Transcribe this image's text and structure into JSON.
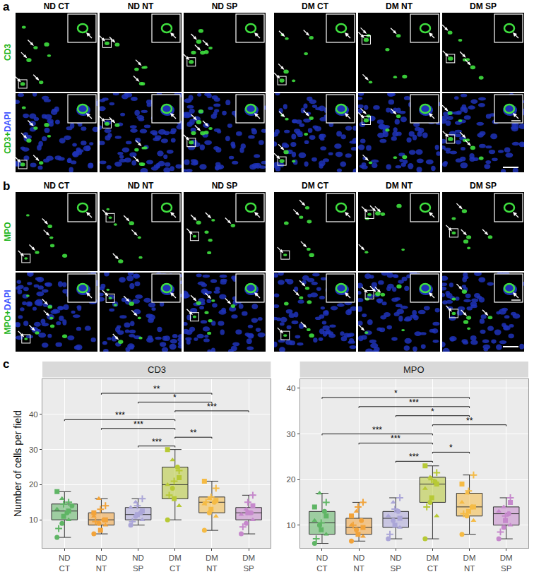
{
  "figure": {
    "panels": [
      {
        "letter": "a",
        "columns": [
          "ND CT",
          "ND NT",
          "ND SP",
          "DM CT",
          "DM NT",
          "DM SP"
        ],
        "rows": [
          "CD3",
          "CD3+DAPI"
        ]
      },
      {
        "letter": "b",
        "columns": [
          "ND CT",
          "ND NT",
          "ND SP",
          "DM CT",
          "DM NT",
          "DM SP"
        ],
        "rows": [
          "MPO",
          "MPO+DAPI"
        ]
      }
    ]
  },
  "chart_data": {
    "letter": "c",
    "type": "box",
    "y_label": "Number of cells per field",
    "grid": true,
    "categories": [
      "ND CT",
      "ND NT",
      "ND SP",
      "DM CT",
      "DM NT",
      "DM SP"
    ],
    "colors": [
      "#5fb565",
      "#f2a33a",
      "#aba6d8",
      "#b7c935",
      "#f5bb45",
      "#c688cc"
    ],
    "facets": [
      {
        "title": "CD3",
        "ylim": [
          2,
          50
        ],
        "yticks": [
          10,
          20,
          30,
          40
        ],
        "boxes": [
          {
            "q1": 10,
            "median": 12.5,
            "q3": 14.5,
            "lowerfence": 5,
            "upperfence": 18,
            "points": [
              {
                "marker": "circle",
                "values": [
                  5,
                  9,
                  12,
                  14
                ]
              },
              {
                "marker": "triangle",
                "values": [
                  10,
                  13,
                  16
                ]
              },
              {
                "marker": "square",
                "values": [
                  11,
                  12.5,
                  18
                ]
              },
              {
                "marker": "plus",
                "values": [
                  7.5,
                  14.5,
                  15
                ]
              }
            ]
          },
          {
            "q1": 8.5,
            "median": 10,
            "q3": 12,
            "lowerfence": 6,
            "upperfence": 16,
            "points": [
              {
                "marker": "circle",
                "values": [
                  6,
                  9,
                  10
                ]
              },
              {
                "marker": "triangle",
                "values": [
                  8.5,
                  11,
                  16
                ]
              },
              {
                "marker": "square",
                "values": [
                  7,
                  10,
                  12
                ]
              },
              {
                "marker": "plus",
                "values": [
                  9.5,
                  13,
                  14
                ]
              }
            ]
          },
          {
            "q1": 10,
            "median": 11.5,
            "q3": 13.5,
            "lowerfence": 8.5,
            "upperfence": 16,
            "points": [
              {
                "marker": "circle",
                "values": [
                  8.5,
                  11,
                  12
                ]
              },
              {
                "marker": "triangle",
                "values": [
                  10,
                  13.5,
                  15
                ]
              },
              {
                "marker": "square",
                "values": [
                  11.5,
                  12.5
                ]
              },
              {
                "marker": "plus",
                "values": [
                  9.5,
                  14,
                  16
                ]
              }
            ]
          },
          {
            "q1": 16,
            "median": 20,
            "q3": 25,
            "lowerfence": 10,
            "upperfence": 30,
            "points": [
              {
                "marker": "circle",
                "values": [
                  10,
                  19,
                  25
                ]
              },
              {
                "marker": "triangle",
                "values": [
                  14,
                  20,
                  27
                ]
              },
              {
                "marker": "square",
                "values": [
                  16,
                  22,
                  30
                ]
              },
              {
                "marker": "plus",
                "values": [
                  17,
                  21,
                  24
                ]
              }
            ]
          },
          {
            "q1": 12,
            "median": 15,
            "q3": 16.5,
            "lowerfence": 7,
            "upperfence": 21,
            "points": [
              {
                "marker": "circle",
                "values": [
                  7,
                  12,
                  15
                ]
              },
              {
                "marker": "triangle",
                "values": [
                  11,
                  14.5,
                  16
                ]
              },
              {
                "marker": "square",
                "values": [
                  13,
                  15.5,
                  21
                ]
              },
              {
                "marker": "plus",
                "values": [
                  15,
                  16.5,
                  19
                ]
              }
            ]
          },
          {
            "q1": 10,
            "median": 12,
            "q3": 13.5,
            "lowerfence": 6,
            "upperfence": 17,
            "points": [
              {
                "marker": "circle",
                "values": [
                  6,
                  9,
                  12
                ]
              },
              {
                "marker": "triangle",
                "values": [
                  10,
                  11.5,
                  13
                ]
              },
              {
                "marker": "square",
                "values": [
                  12,
                  14
                ]
              },
              {
                "marker": "plus",
                "values": [
                  8,
                  15,
                  17
                ]
              }
            ]
          }
        ],
        "comparisons": [
          {
            "from": "ND SP",
            "to": "DM CT",
            "label": "***",
            "y": 31
          },
          {
            "from": "DM CT",
            "to": "DM NT",
            "label": "**",
            "y": 33.5
          },
          {
            "from": "ND NT",
            "to": "DM CT",
            "label": "***",
            "y": 36
          },
          {
            "from": "ND CT",
            "to": "DM CT",
            "label": "***",
            "y": 38.5
          },
          {
            "from": "DM CT",
            "to": "DM SP",
            "label": "***",
            "y": 41
          },
          {
            "from": "ND SP",
            "to": "DM NT",
            "label": "*",
            "y": 43.5
          },
          {
            "from": "ND NT",
            "to": "DM NT",
            "label": "**",
            "y": 46
          }
        ]
      },
      {
        "title": "MPO",
        "ylim": [
          5,
          42
        ],
        "yticks": [
          10,
          20,
          30,
          40
        ],
        "boxes": [
          {
            "q1": 8,
            "median": 10.5,
            "q3": 13,
            "lowerfence": 6,
            "upperfence": 17,
            "points": [
              {
                "marker": "circle",
                "values": [
                  6,
                  10,
                  13
                ]
              },
              {
                "marker": "triangle",
                "values": [
                  8,
                  11,
                  17
                ]
              },
              {
                "marker": "square",
                "values": [
                  9,
                  12,
                  14
                ]
              },
              {
                "marker": "plus",
                "values": [
                  7,
                  10.5,
                  15
                ]
              }
            ]
          },
          {
            "q1": 8,
            "median": 9.5,
            "q3": 11.5,
            "lowerfence": 6.5,
            "upperfence": 15,
            "points": [
              {
                "marker": "circle",
                "values": [
                  6.5,
                  9,
                  11
                ]
              },
              {
                "marker": "triangle",
                "values": [
                  7.5,
                  10,
                  13
                ]
              },
              {
                "marker": "square",
                "values": [
                  8,
                  9.5,
                  12
                ]
              },
              {
                "marker": "plus",
                "values": [
                  10,
                  14,
                  15
                ]
              }
            ]
          },
          {
            "q1": 9.5,
            "median": 11.5,
            "q3": 13,
            "lowerfence": 7,
            "upperfence": 16,
            "points": [
              {
                "marker": "circle",
                "values": [
                  7,
                  11,
                  13
                ]
              },
              {
                "marker": "triangle",
                "values": [
                  9.5,
                  12,
                  15
                ]
              },
              {
                "marker": "square",
                "values": [
                  10,
                  11.5
                ]
              },
              {
                "marker": "plus",
                "values": [
                  8,
                  13.5,
                  16
                ]
              }
            ]
          },
          {
            "q1": 15,
            "median": 19,
            "q3": 20.5,
            "lowerfence": 7,
            "upperfence": 23,
            "points": [
              {
                "marker": "circle",
                "values": [
                  7,
                  15,
                  19.5
                ]
              },
              {
                "marker": "triangle",
                "values": [
                  12,
                  18,
                  20.5
                ]
              },
              {
                "marker": "square",
                "values": [
                  16,
                  19,
                  23
                ]
              },
              {
                "marker": "plus",
                "values": [
                  14,
                  20,
                  21.5
                ]
              }
            ]
          },
          {
            "q1": 12,
            "median": 14,
            "q3": 17,
            "lowerfence": 8,
            "upperfence": 21,
            "points": [
              {
                "marker": "circle",
                "values": [
                  8,
                  12,
                  14
                ]
              },
              {
                "marker": "triangle",
                "values": [
                  11,
                  15,
                  17
                ]
              },
              {
                "marker": "square",
                "values": [
                  13,
                  14,
                  19
                ]
              },
              {
                "marker": "plus",
                "values": [
                  12.5,
                  17.5,
                  21
                ]
              }
            ]
          },
          {
            "q1": 10,
            "median": 12.5,
            "q3": 14,
            "lowerfence": 7,
            "upperfence": 16,
            "points": [
              {
                "marker": "circle",
                "values": [
                  7,
                  9.5,
                  12.5
                ]
              },
              {
                "marker": "triangle",
                "values": [
                  10,
                  13,
                  14
                ]
              },
              {
                "marker": "square",
                "values": [
                  11,
                  15
                ]
              },
              {
                "marker": "plus",
                "values": [
                  8.5,
                  12,
                  16
                ]
              }
            ]
          }
        ],
        "comparisons": [
          {
            "from": "ND SP",
            "to": "DM CT",
            "label": "***",
            "y": 24
          },
          {
            "from": "DM CT",
            "to": "DM NT",
            "label": "*",
            "y": 26
          },
          {
            "from": "ND NT",
            "to": "DM CT",
            "label": "***",
            "y": 28
          },
          {
            "from": "ND CT",
            "to": "DM CT",
            "label": "***",
            "y": 30
          },
          {
            "from": "DM CT",
            "to": "DM SP",
            "label": "**",
            "y": 32
          },
          {
            "from": "ND SP",
            "to": "DM NT",
            "label": "*",
            "y": 34
          },
          {
            "from": "ND NT",
            "to": "DM NT",
            "label": "***",
            "y": 36
          },
          {
            "from": "ND CT",
            "to": "DM NT",
            "label": "*",
            "y": 38
          }
        ]
      }
    ]
  }
}
